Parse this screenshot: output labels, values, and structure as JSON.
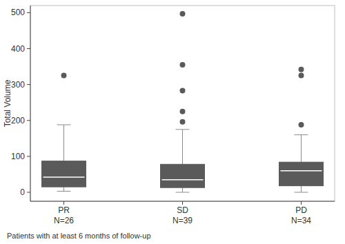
{
  "chart_data": {
    "type": "box",
    "y_label": "Total Volume",
    "caption": "Patients with at least 6 months of follow-up",
    "categories": [
      "PR",
      "SD",
      "PD"
    ],
    "n_labels": [
      "N=26",
      "N=39",
      "N=34"
    ],
    "boxes": [
      {
        "min": 3,
        "q1": 15,
        "median": 42,
        "q3": 87,
        "max": 188,
        "outliers": [
          325
        ]
      },
      {
        "min": 0,
        "q1": 13,
        "median": 35,
        "q3": 78,
        "max": 175,
        "outliers": [
          196,
          225,
          283,
          355,
          497
        ]
      },
      {
        "min": 0,
        "q1": 18,
        "median": 60,
        "q3": 84,
        "max": 160,
        "outliers": [
          188,
          325,
          342
        ]
      }
    ],
    "color": "#5a5a5a",
    "ylim": [
      -25,
      520
    ],
    "yticks": [
      0,
      100,
      200,
      300,
      400,
      500
    ],
    "grid": false
  }
}
